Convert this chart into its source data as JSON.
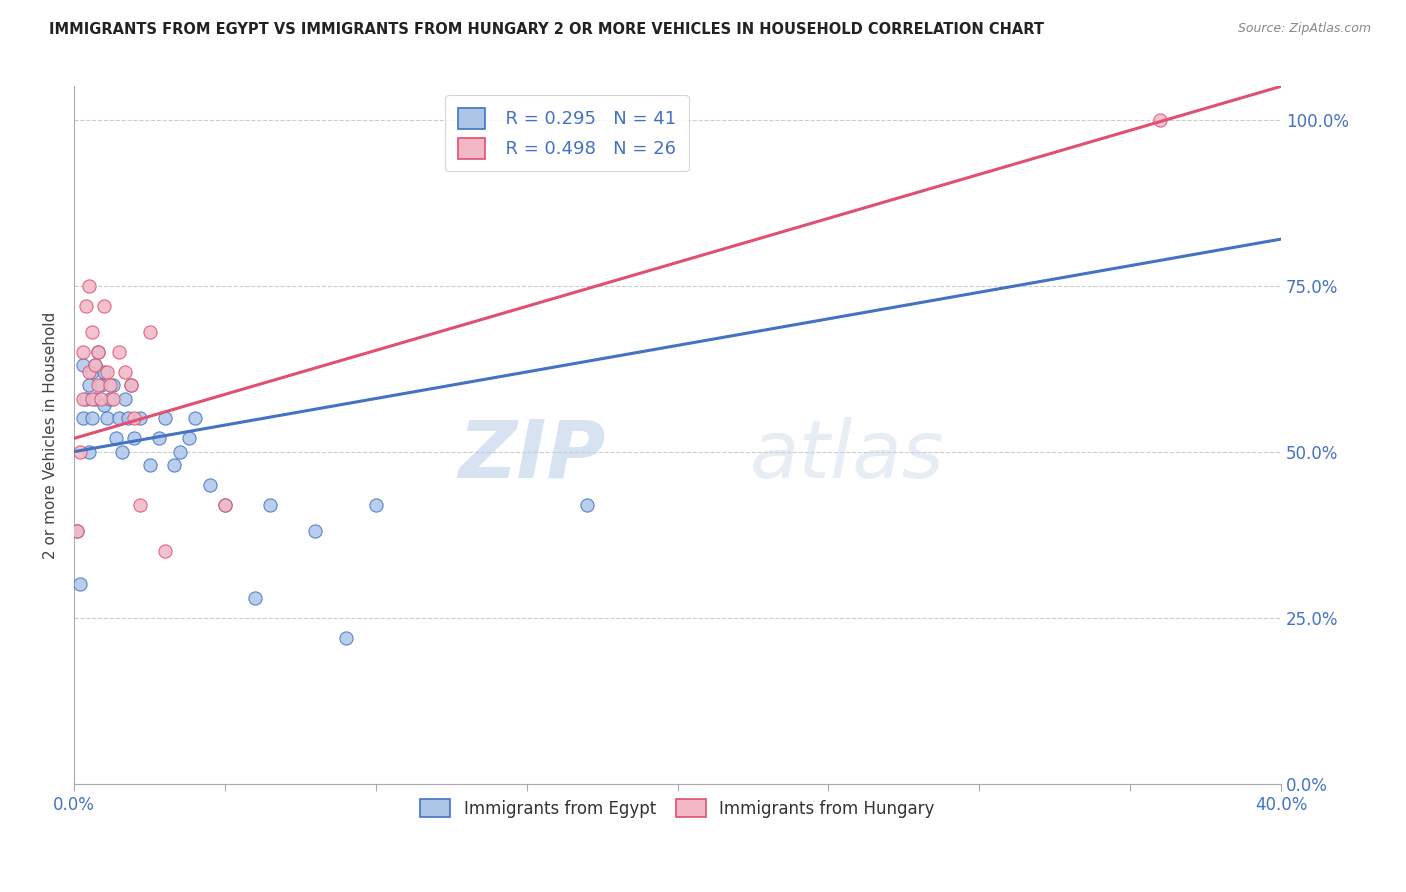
{
  "title": "IMMIGRANTS FROM EGYPT VS IMMIGRANTS FROM HUNGARY 2 OR MORE VEHICLES IN HOUSEHOLD CORRELATION CHART",
  "source": "Source: ZipAtlas.com",
  "ylabel": "2 or more Vehicles in Household",
  "xmin": 0.0,
  "xmax": 0.4,
  "ymin": 0.0,
  "ymax": 1.05,
  "xtick_positions": [
    0.0,
    0.05,
    0.1,
    0.15,
    0.2,
    0.25,
    0.3,
    0.35,
    0.4
  ],
  "ytick_labels_right": [
    "0.0%",
    "25.0%",
    "50.0%",
    "75.0%",
    "100.0%"
  ],
  "ytick_positions": [
    0.0,
    0.25,
    0.5,
    0.75,
    1.0
  ],
  "legend_label1": "Immigrants from Egypt",
  "legend_label2": "Immigrants from Hungary",
  "legend_R1": "R = 0.295",
  "legend_N1": "N = 41",
  "legend_R2": "R = 0.498",
  "legend_N2": "N = 26",
  "color_egypt": "#adc6e8",
  "color_hungary": "#f2b8c6",
  "line_color_egypt": "#4472c4",
  "line_color_hungary": "#e05070",
  "watermark_zip": "ZIP",
  "watermark_atlas": "atlas",
  "egypt_x": [
    0.001,
    0.002,
    0.003,
    0.003,
    0.004,
    0.005,
    0.005,
    0.006,
    0.006,
    0.007,
    0.007,
    0.008,
    0.009,
    0.01,
    0.01,
    0.011,
    0.012,
    0.013,
    0.014,
    0.015,
    0.016,
    0.017,
    0.018,
    0.019,
    0.02,
    0.022,
    0.025,
    0.028,
    0.03,
    0.033,
    0.035,
    0.038,
    0.04,
    0.045,
    0.05,
    0.06,
    0.065,
    0.08,
    0.09,
    0.1,
    0.17
  ],
  "egypt_y": [
    0.38,
    0.3,
    0.55,
    0.63,
    0.58,
    0.5,
    0.6,
    0.62,
    0.55,
    0.63,
    0.58,
    0.65,
    0.6,
    0.57,
    0.62,
    0.55,
    0.58,
    0.6,
    0.52,
    0.55,
    0.5,
    0.58,
    0.55,
    0.6,
    0.52,
    0.55,
    0.48,
    0.52,
    0.55,
    0.48,
    0.5,
    0.52,
    0.55,
    0.45,
    0.42,
    0.28,
    0.42,
    0.38,
    0.22,
    0.42,
    0.42
  ],
  "hungary_x": [
    0.001,
    0.002,
    0.003,
    0.003,
    0.004,
    0.005,
    0.005,
    0.006,
    0.006,
    0.007,
    0.008,
    0.008,
    0.009,
    0.01,
    0.011,
    0.012,
    0.013,
    0.015,
    0.017,
    0.019,
    0.02,
    0.022,
    0.025,
    0.03,
    0.05,
    0.36
  ],
  "hungary_y": [
    0.38,
    0.5,
    0.58,
    0.65,
    0.72,
    0.62,
    0.75,
    0.58,
    0.68,
    0.63,
    0.6,
    0.65,
    0.58,
    0.72,
    0.62,
    0.6,
    0.58,
    0.65,
    0.62,
    0.6,
    0.55,
    0.42,
    0.68,
    0.35,
    0.42,
    1.0
  ],
  "trend_egypt_x0": 0.0,
  "trend_egypt_x1": 0.4,
  "trend_egypt_y0": 0.5,
  "trend_egypt_y1": 0.82,
  "trend_hungary_x0": 0.0,
  "trend_hungary_x1": 0.4,
  "trend_hungary_y0": 0.52,
  "trend_hungary_y1": 1.05
}
